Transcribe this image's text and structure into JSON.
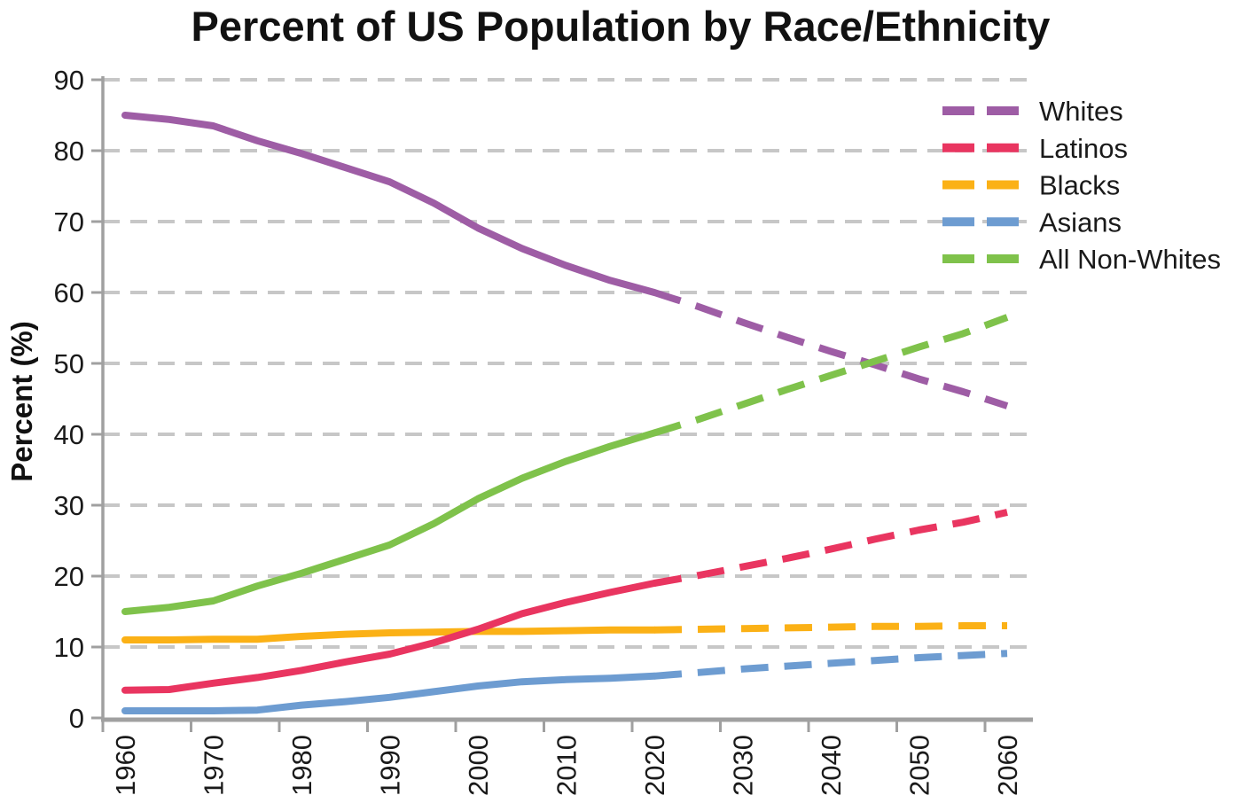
{
  "chart_data": {
    "type": "line",
    "title": "Percent of US Population by Race/Ethnicity",
    "ylabel": "Percent (%)",
    "xlabel": "",
    "ylim": [
      0,
      90
    ],
    "ytick_step": 10,
    "ytick_labels": [
      "0",
      "10",
      "20",
      "30",
      "40",
      "50",
      "60",
      "70",
      "80",
      "90"
    ],
    "xtick_labels": [
      "1960",
      "1970",
      "1980",
      "1990",
      "2000",
      "2010",
      "2020",
      "2030",
      "2040",
      "2050",
      "2060"
    ],
    "grid": "horizontal dashed gridlines",
    "legend_position": "top-right inside plot",
    "dashed_projection_from_year": 2020,
    "x_years": [
      1960,
      1965,
      1970,
      1975,
      1980,
      1985,
      1990,
      1995,
      2000,
      2005,
      2010,
      2015,
      2020,
      2025,
      2030,
      2035,
      2040,
      2045,
      2050,
      2055,
      2060
    ],
    "series": [
      {
        "name": "Whites",
        "color": "#9E5DA5",
        "values": [
          85.0,
          84.4,
          83.5,
          81.4,
          79.6,
          77.6,
          75.6,
          72.6,
          69.1,
          66.2,
          63.8,
          61.7,
          60.0,
          58.0,
          55.8,
          53.7,
          51.7,
          49.8,
          47.8,
          46.0,
          44.0
        ]
      },
      {
        "name": "Latinos",
        "color": "#E93560",
        "values": [
          3.9,
          4.0,
          4.9,
          5.7,
          6.7,
          7.9,
          9.0,
          10.6,
          12.5,
          14.7,
          16.3,
          17.7,
          19.0,
          20.1,
          21.3,
          22.5,
          23.8,
          25.2,
          26.5,
          27.6,
          29.0
        ]
      },
      {
        "name": "Blacks",
        "color": "#FBB116",
        "values": [
          11.0,
          11.0,
          11.1,
          11.1,
          11.5,
          11.8,
          12.0,
          12.1,
          12.2,
          12.2,
          12.3,
          12.4,
          12.4,
          12.5,
          12.6,
          12.7,
          12.8,
          12.9,
          12.9,
          13.0,
          13.0
        ]
      },
      {
        "name": "Asians",
        "color": "#6D9CD1",
        "values": [
          1.0,
          1.0,
          1.0,
          1.1,
          1.8,
          2.3,
          2.9,
          3.7,
          4.5,
          5.1,
          5.4,
          5.6,
          5.9,
          6.4,
          6.9,
          7.3,
          7.7,
          8.1,
          8.5,
          8.8,
          9.1
        ]
      },
      {
        "name": "All Non-Whites",
        "color": "#7FC24B",
        "values": [
          15.0,
          15.6,
          16.5,
          18.6,
          20.4,
          22.4,
          24.4,
          27.4,
          30.9,
          33.8,
          36.2,
          38.3,
          40.2,
          42.1,
          44.2,
          46.3,
          48.3,
          50.3,
          52.3,
          54.2,
          56.5
        ]
      }
    ]
  },
  "colors": {
    "gridline": "#C7C7C7",
    "axis": "#A0A0A0",
    "tick": "#A0A0A0",
    "label_text": "#1a1a1a"
  }
}
